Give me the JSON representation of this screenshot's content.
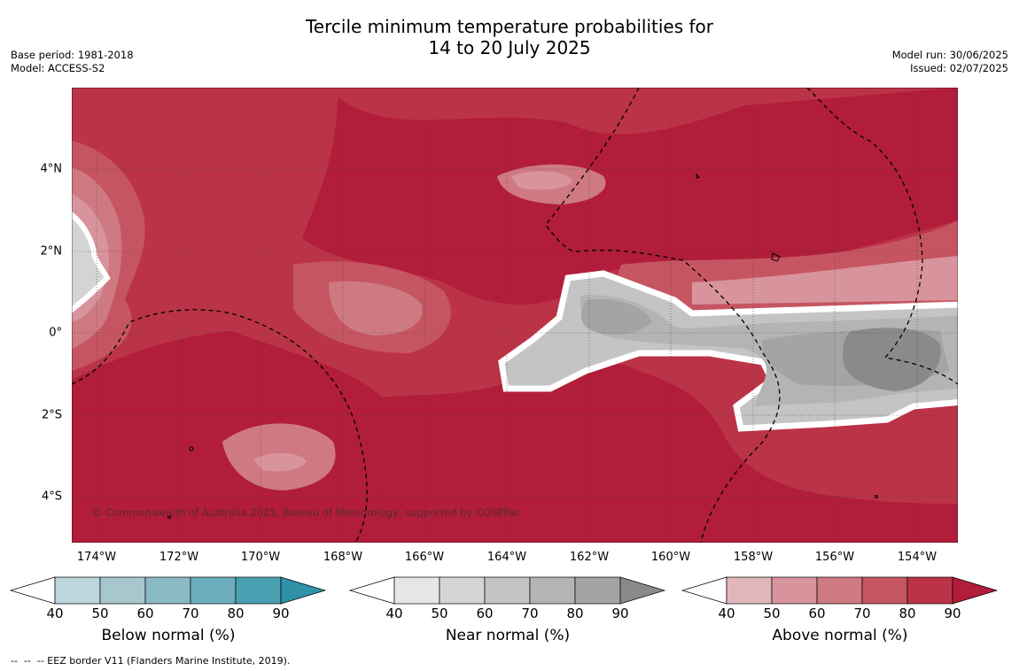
{
  "title": {
    "line1": "Tercile minimum temperature probabilities for",
    "line2": "14 to 20 July 2025"
  },
  "meta": {
    "base_period": "Base period: 1981-2018",
    "model": "Model: ACCESS-S2",
    "model_run": "Model run: 30/06/2025",
    "issued": "Issued: 02/07/2025"
  },
  "map": {
    "lon_ticks": [
      "174°W",
      "172°W",
      "170°W",
      "168°W",
      "166°W",
      "164°W",
      "162°W",
      "160°W",
      "158°W",
      "156°W",
      "154°W"
    ],
    "lat_ticks": [
      "4°N",
      "2°N",
      "0°",
      "2°S",
      "4°S"
    ],
    "copyright": "© Commonwealth of Australia 2025, Bureau of Meteorology, supported by COSPPac"
  },
  "colorbars": [
    {
      "title": "Below normal (%)",
      "labels": [
        "40",
        "50",
        "60",
        "70",
        "80",
        "90"
      ],
      "colors": [
        "#ffffff",
        "#bdd5dc",
        "#a8c6cd",
        "#8bb9c5",
        "#6badbd",
        "#4a9fb1",
        "#2f92a6"
      ]
    },
    {
      "title": "Near normal (%)",
      "labels": [
        "40",
        "50",
        "60",
        "70",
        "80",
        "90"
      ],
      "colors": [
        "#ffffff",
        "#e6e6e6",
        "#d4d4d4",
        "#c4c4c4",
        "#b4b4b4",
        "#a4a4a4",
        "#8a8a8a"
      ]
    },
    {
      "title": "Above normal (%)",
      "labels": [
        "40",
        "50",
        "60",
        "70",
        "80",
        "90"
      ],
      "colors": [
        "#ffffff",
        "#e2b7bc",
        "#d8949c",
        "#cf7982",
        "#c65562",
        "#bb3347",
        "#b11d3a"
      ]
    }
  ],
  "legend": {
    "eez": "--  --  -- EEZ border V11 (Flanders Marine Institute, 2019)."
  }
}
